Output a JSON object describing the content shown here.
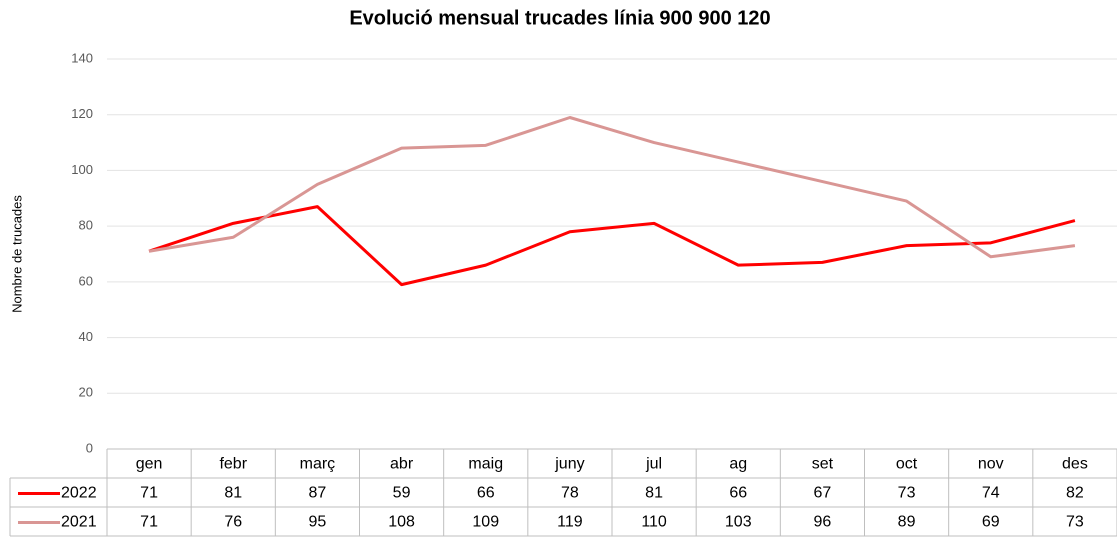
{
  "chart_data": {
    "type": "line",
    "title": "Evolució mensual trucades línia 900 900 120",
    "y_label": "Nombre de trucades",
    "categories": [
      "gen",
      "febr",
      "març",
      "abr",
      "maig",
      "juny",
      "jul",
      "ag",
      "set",
      "oct",
      "nov",
      "des"
    ],
    "series": [
      {
        "name": "2022",
        "color": "#ff0000",
        "values": [
          71,
          81,
          87,
          59,
          66,
          78,
          81,
          66,
          67,
          73,
          74,
          82
        ]
      },
      {
        "name": "2021",
        "color": "#d99694",
        "values": [
          71,
          76,
          95,
          108,
          109,
          119,
          110,
          103,
          96,
          89,
          69,
          73
        ]
      }
    ],
    "ylim": [
      0,
      140
    ],
    "yticks": [
      0,
      20,
      40,
      60,
      80,
      100,
      120,
      140
    ],
    "grid": true,
    "data_table": true
  }
}
